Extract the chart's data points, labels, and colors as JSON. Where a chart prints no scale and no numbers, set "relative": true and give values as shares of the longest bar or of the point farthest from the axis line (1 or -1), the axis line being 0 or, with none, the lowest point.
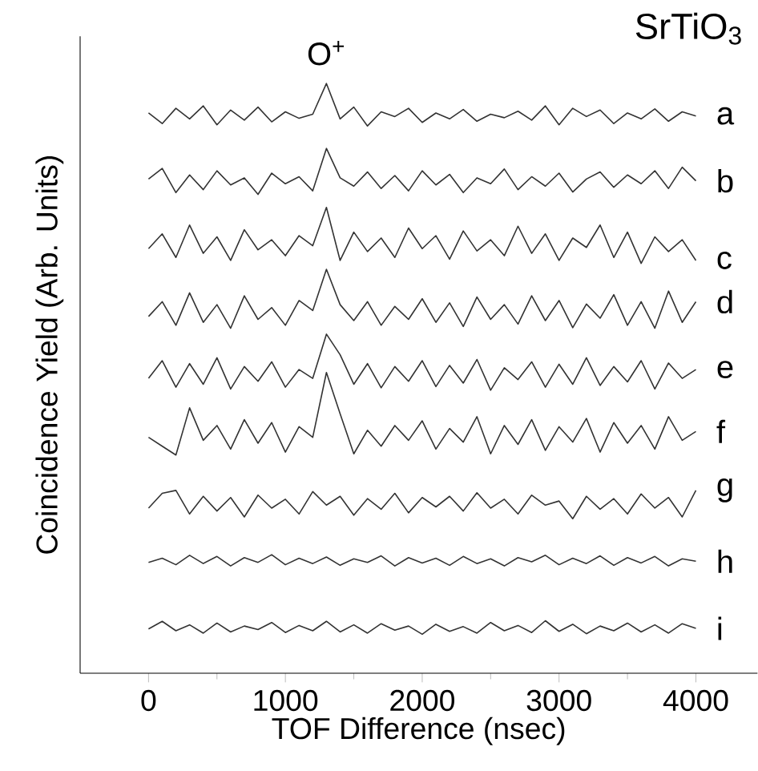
{
  "chart_data": {
    "type": "line",
    "title": "SrTiO$_{3}$",
    "xlabel": "TOF Difference (nsec)",
    "ylabel": "Coincidence Yield (Arb. Units)",
    "relative": true,
    "annotations": [
      {
        "text": "O$^{+}$",
        "x": 1300,
        "y": 1.0
      }
    ],
    "xlim": [
      -500,
      4450
    ],
    "xticks": [
      0,
      1000,
      2000,
      3000,
      4000
    ],
    "grid": false,
    "marker": "none",
    "line_style": "solid",
    "x": [
      0,
      100,
      200,
      300,
      400,
      500,
      600,
      700,
      800,
      900,
      1000,
      1100,
      1200,
      1300,
      1400,
      1500,
      1600,
      1700,
      1800,
      1900,
      2000,
      2100,
      2200,
      2300,
      2400,
      2500,
      2600,
      2700,
      2800,
      2900,
      3000,
      3100,
      3200,
      3300,
      3400,
      3500,
      3600,
      3700,
      3800,
      3900,
      4000
    ],
    "series": [
      {
        "name": "a",
        "color": "#333333",
        "values": [
          0.95,
          0.932,
          0.958,
          0.94,
          0.962,
          0.93,
          0.955,
          0.938,
          0.96,
          0.935,
          0.952,
          0.941,
          0.948,
          1.0,
          0.94,
          0.96,
          0.928,
          0.952,
          0.944,
          0.958,
          0.934,
          0.95,
          0.94,
          0.956,
          0.936,
          0.948,
          0.942,
          0.953,
          0.938,
          0.962,
          0.93,
          0.958,
          0.944,
          0.955,
          0.932,
          0.95,
          0.94,
          0.957,
          0.936,
          0.952,
          0.945
        ]
      },
      {
        "name": "b",
        "color": "#333333",
        "values": [
          0.838,
          0.856,
          0.815,
          0.845,
          0.82,
          0.852,
          0.828,
          0.84,
          0.812,
          0.848,
          0.83,
          0.842,
          0.818,
          0.89,
          0.84,
          0.826,
          0.85,
          0.822,
          0.844,
          0.818,
          0.852,
          0.828,
          0.846,
          0.815,
          0.84,
          0.83,
          0.855,
          0.82,
          0.842,
          0.826,
          0.848,
          0.816,
          0.838,
          0.85,
          0.824,
          0.845,
          0.83,
          0.852,
          0.822,
          0.858,
          0.835
        ]
      },
      {
        "name": "c",
        "color": "#333333",
        "values": [
          0.72,
          0.745,
          0.705,
          0.76,
          0.712,
          0.74,
          0.7,
          0.752,
          0.718,
          0.735,
          0.708,
          0.742,
          0.725,
          0.79,
          0.7,
          0.748,
          0.715,
          0.738,
          0.705,
          0.755,
          0.72,
          0.742,
          0.702,
          0.75,
          0.716,
          0.735,
          0.708,
          0.758,
          0.712,
          0.745,
          0.7,
          0.738,
          0.722,
          0.76,
          0.705,
          0.748,
          0.695,
          0.74,
          0.715,
          0.735,
          0.7
        ]
      },
      {
        "name": "d",
        "color": "#333333",
        "values": [
          0.605,
          0.63,
          0.59,
          0.645,
          0.595,
          0.625,
          0.585,
          0.64,
          0.6,
          0.62,
          0.59,
          0.632,
          0.615,
          0.685,
          0.625,
          0.598,
          0.63,
          0.59,
          0.622,
          0.6,
          0.635,
          0.595,
          0.628,
          0.588,
          0.638,
          0.6,
          0.625,
          0.592,
          0.64,
          0.598,
          0.632,
          0.586,
          0.626,
          0.602,
          0.642,
          0.59,
          0.63,
          0.585,
          0.648,
          0.595,
          0.63
        ]
      },
      {
        "name": "e",
        "color": "#333333",
        "values": [
          0.5,
          0.53,
          0.485,
          0.525,
          0.49,
          0.535,
          0.482,
          0.52,
          0.495,
          0.528,
          0.485,
          0.515,
          0.5,
          0.575,
          0.54,
          0.49,
          0.525,
          0.484,
          0.52,
          0.495,
          0.53,
          0.486,
          0.522,
          0.492,
          0.532,
          0.48,
          0.518,
          0.498,
          0.528,
          0.485,
          0.524,
          0.49,
          0.535,
          0.488,
          0.52,
          0.494,
          0.53,
          0.482,
          0.526,
          0.5,
          0.515
        ]
      },
      {
        "name": "f",
        "color": "#333333",
        "values": [
          0.4,
          0.385,
          0.37,
          0.45,
          0.395,
          0.42,
          0.38,
          0.43,
          0.39,
          0.425,
          0.375,
          0.418,
          0.4,
          0.51,
          0.44,
          0.372,
          0.412,
          0.385,
          0.42,
          0.395,
          0.428,
          0.38,
          0.415,
          0.392,
          0.435,
          0.372,
          0.42,
          0.388,
          0.43,
          0.378,
          0.418,
          0.392,
          0.432,
          0.375,
          0.425,
          0.39,
          0.42,
          0.38,
          0.435,
          0.395,
          0.41
        ]
      },
      {
        "name": "g",
        "color": "#333333",
        "values": [
          0.28,
          0.305,
          0.31,
          0.27,
          0.3,
          0.275,
          0.298,
          0.265,
          0.302,
          0.28,
          0.295,
          0.27,
          0.308,
          0.285,
          0.3,
          0.268,
          0.296,
          0.278,
          0.305,
          0.272,
          0.298,
          0.282,
          0.3,
          0.275,
          0.306,
          0.28,
          0.295,
          0.27,
          0.302,
          0.285,
          0.292,
          0.262,
          0.3,
          0.278,
          0.296,
          0.27,
          0.304,
          0.28,
          0.298,
          0.265,
          0.31
        ]
      },
      {
        "name": "h",
        "color": "#333333",
        "values": [
          0.188,
          0.195,
          0.184,
          0.2,
          0.186,
          0.198,
          0.182,
          0.196,
          0.188,
          0.201,
          0.184,
          0.195,
          0.186,
          0.197,
          0.183,
          0.194,
          0.188,
          0.199,
          0.182,
          0.196,
          0.187,
          0.195,
          0.183,
          0.198,
          0.186,
          0.194,
          0.182,
          0.196,
          0.189,
          0.2,
          0.184,
          0.195,
          0.186,
          0.199,
          0.183,
          0.196,
          0.187,
          0.198,
          0.182,
          0.194,
          0.19
        ]
      },
      {
        "name": "i",
        "color": "#333333",
        "values": [
          0.075,
          0.088,
          0.072,
          0.082,
          0.068,
          0.085,
          0.07,
          0.08,
          0.074,
          0.086,
          0.069,
          0.081,
          0.072,
          0.088,
          0.07,
          0.082,
          0.068,
          0.084,
          0.073,
          0.08,
          0.066,
          0.083,
          0.071,
          0.079,
          0.068,
          0.086,
          0.072,
          0.081,
          0.069,
          0.089,
          0.071,
          0.083,
          0.067,
          0.08,
          0.072,
          0.085,
          0.07,
          0.082,
          0.068,
          0.084,
          0.076
        ]
      }
    ]
  }
}
